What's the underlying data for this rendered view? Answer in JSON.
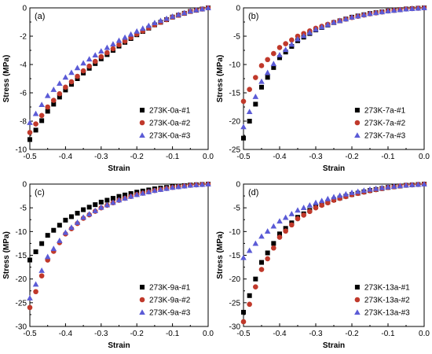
{
  "chart_data": [
    {
      "type": "scatter",
      "panel_label": "(a)",
      "xlabel": "Strain",
      "ylabel": "Stress (MPa)",
      "xlim": [
        -0.5,
        0.0
      ],
      "ylim": [
        -10,
        0
      ],
      "xticks": [
        -0.5,
        -0.4,
        -0.3,
        -0.2,
        -0.1,
        0.0
      ],
      "xtick_labels": [
        "-0.5",
        "-0.4",
        "-0.3",
        "-0.2",
        "-0.1",
        "0.0"
      ],
      "yticks": [
        -10,
        -8,
        -6,
        -4,
        -2,
        0
      ],
      "ytick_labels": [
        "-10",
        "-8",
        "-6",
        "-4",
        "-2",
        "0"
      ],
      "legend_position": "lower-right",
      "series": [
        {
          "name": "273K-0a-#1",
          "marker": "square",
          "color": "#000000",
          "x": [
            -0.5,
            -0.45,
            -0.4,
            -0.35,
            -0.3,
            -0.25,
            -0.2,
            -0.15,
            -0.1,
            -0.05,
            0.0
          ],
          "y": [
            -9.3,
            -7.3,
            -5.8,
            -4.6,
            -3.6,
            -2.7,
            -1.9,
            -1.2,
            -0.65,
            -0.25,
            0.0
          ]
        },
        {
          "name": "273K-0a-#2",
          "marker": "circle",
          "color": "#c0392b",
          "x": [
            -0.5,
            -0.45,
            -0.4,
            -0.35,
            -0.3,
            -0.25,
            -0.2,
            -0.15,
            -0.1,
            -0.05,
            0.0
          ],
          "y": [
            -8.8,
            -7.0,
            -5.6,
            -4.45,
            -3.45,
            -2.6,
            -1.85,
            -1.2,
            -0.65,
            -0.25,
            0.0
          ]
        },
        {
          "name": "273K-0a-#3",
          "marker": "triangle",
          "color": "#5b5bd6",
          "x": [
            -0.5,
            -0.45,
            -0.4,
            -0.35,
            -0.3,
            -0.25,
            -0.2,
            -0.15,
            -0.1,
            -0.05,
            0.0
          ],
          "y": [
            -8.1,
            -6.2,
            -4.9,
            -3.9,
            -3.05,
            -2.3,
            -1.65,
            -1.05,
            -0.6,
            -0.22,
            0.0
          ]
        }
      ]
    },
    {
      "type": "scatter",
      "panel_label": "(b)",
      "xlabel": "Strain",
      "ylabel": "Stress (MPa)",
      "xlim": [
        -0.5,
        0.0
      ],
      "ylim": [
        -25,
        0
      ],
      "xticks": [
        -0.5,
        -0.4,
        -0.3,
        -0.2,
        -0.1,
        0.0
      ],
      "xtick_labels": [
        "-0.5",
        "-0.4",
        "-0.3",
        "-0.2",
        "-0.1",
        "0.0"
      ],
      "yticks": [
        -25,
        -20,
        -15,
        -10,
        -5,
        0
      ],
      "ytick_labels": [
        "-25",
        "-20",
        "-15",
        "-10",
        "-5",
        "0"
      ],
      "legend_position": "lower-right",
      "series": [
        {
          "name": "273K-7a-#1",
          "marker": "square",
          "color": "#000000",
          "x": [
            -0.5,
            -0.45,
            -0.4,
            -0.35,
            -0.3,
            -0.25,
            -0.2,
            -0.15,
            -0.1,
            -0.05,
            0.0
          ],
          "y": [
            -23.0,
            -14.0,
            -8.8,
            -5.8,
            -3.9,
            -2.6,
            -1.65,
            -1.0,
            -0.55,
            -0.2,
            0.0
          ]
        },
        {
          "name": "273K-7a-#2",
          "marker": "circle",
          "color": "#c0392b",
          "x": [
            -0.5,
            -0.45,
            -0.4,
            -0.35,
            -0.3,
            -0.25,
            -0.2,
            -0.15,
            -0.1,
            -0.05,
            0.0
          ],
          "y": [
            -16.5,
            -10.2,
            -7.0,
            -5.0,
            -3.6,
            -2.55,
            -1.7,
            -1.05,
            -0.55,
            -0.2,
            0.0
          ]
        },
        {
          "name": "273K-7a-#3",
          "marker": "triangle",
          "color": "#5b5bd6",
          "x": [
            -0.5,
            -0.45,
            -0.4,
            -0.35,
            -0.3,
            -0.25,
            -0.2,
            -0.15,
            -0.1,
            -0.05,
            0.0
          ],
          "y": [
            -21.0,
            -13.0,
            -8.3,
            -5.5,
            -3.8,
            -2.55,
            -1.65,
            -1.0,
            -0.55,
            -0.2,
            0.0
          ]
        }
      ]
    },
    {
      "type": "scatter",
      "panel_label": "(c)",
      "xlabel": "Strain",
      "ylabel": "Stress (MPa)",
      "xlim": [
        -0.5,
        0.0
      ],
      "ylim": [
        -30,
        0
      ],
      "xticks": [
        -0.5,
        -0.4,
        -0.3,
        -0.2,
        -0.1,
        0.0
      ],
      "xtick_labels": [
        "-0.5",
        "-0.4",
        "-0.3",
        "-0.2",
        "-0.1",
        "0.0"
      ],
      "yticks": [
        -30,
        -25,
        -20,
        -15,
        -10,
        -5,
        0
      ],
      "ytick_labels": [
        "-30",
        "-25",
        "-20",
        "-15",
        "-10",
        "-5",
        "0"
      ],
      "legend_position": "lower-right",
      "series": [
        {
          "name": "273K-9a-#1",
          "marker": "square",
          "color": "#000000",
          "x": [
            -0.5,
            -0.45,
            -0.4,
            -0.35,
            -0.3,
            -0.25,
            -0.2,
            -0.15,
            -0.1,
            -0.05,
            0.0
          ],
          "y": [
            -16.0,
            -10.8,
            -7.6,
            -5.4,
            -3.8,
            -2.6,
            -1.7,
            -1.0,
            -0.55,
            -0.2,
            0.0
          ]
        },
        {
          "name": "273K-9a-#2",
          "marker": "circle",
          "color": "#c0392b",
          "x": [
            -0.5,
            -0.45,
            -0.4,
            -0.35,
            -0.3,
            -0.25,
            -0.2,
            -0.15,
            -0.1,
            -0.05,
            0.0
          ],
          "y": [
            -26.0,
            -16.0,
            -10.5,
            -7.2,
            -5.0,
            -3.4,
            -2.2,
            -1.35,
            -0.7,
            -0.25,
            0.0
          ]
        },
        {
          "name": "273K-9a-#3",
          "marker": "triangle",
          "color": "#5b5bd6",
          "x": [
            -0.5,
            -0.45,
            -0.4,
            -0.35,
            -0.3,
            -0.25,
            -0.2,
            -0.15,
            -0.1,
            -0.05,
            0.0
          ],
          "y": [
            -24.0,
            -15.3,
            -10.2,
            -7.0,
            -4.9,
            -3.35,
            -2.2,
            -1.35,
            -0.7,
            -0.25,
            0.0
          ]
        }
      ]
    },
    {
      "type": "scatter",
      "panel_label": "(d)",
      "xlabel": "Strain",
      "ylabel": "Stress (MPa)",
      "xlim": [
        -0.5,
        0.0
      ],
      "ylim": [
        -30,
        0
      ],
      "xticks": [
        -0.5,
        -0.4,
        -0.3,
        -0.2,
        -0.1,
        0.0
      ],
      "xtick_labels": [
        "-0.5",
        "-0.4",
        "-0.3",
        "-0.2",
        "-0.1",
        "0.0"
      ],
      "yticks": [
        -30,
        -25,
        -20,
        -15,
        -10,
        -5,
        0
      ],
      "ytick_labels": [
        "-30",
        "-25",
        "-20",
        "-15",
        "-10",
        "-5",
        "0"
      ],
      "legend_position": "lower-right",
      "series": [
        {
          "name": "273K-13a-#1",
          "marker": "square",
          "color": "#000000",
          "x": [
            -0.5,
            -0.45,
            -0.4,
            -0.35,
            -0.3,
            -0.25,
            -0.2,
            -0.15,
            -0.1,
            -0.05,
            0.0
          ],
          "y": [
            -27.0,
            -16.5,
            -10.5,
            -7.0,
            -4.8,
            -3.3,
            -2.2,
            -1.35,
            -0.7,
            -0.25,
            0.0
          ]
        },
        {
          "name": "273K-13a-#2",
          "marker": "circle",
          "color": "#c0392b",
          "x": [
            -0.5,
            -0.45,
            -0.4,
            -0.35,
            -0.3,
            -0.25,
            -0.2,
            -0.15,
            -0.1,
            -0.05,
            0.0
          ],
          "y": [
            -29.0,
            -18.0,
            -11.2,
            -7.3,
            -5.0,
            -3.4,
            -2.25,
            -1.4,
            -0.72,
            -0.25,
            0.0
          ]
        },
        {
          "name": "273K-13a-#3",
          "marker": "triangle",
          "color": "#5b5bd6",
          "x": [
            -0.5,
            -0.45,
            -0.4,
            -0.35,
            -0.3,
            -0.25,
            -0.2,
            -0.15,
            -0.1,
            -0.05,
            0.0
          ],
          "y": [
            -15.5,
            -11.0,
            -7.8,
            -5.5,
            -3.9,
            -2.7,
            -1.8,
            -1.1,
            -0.6,
            -0.22,
            0.0
          ]
        }
      ]
    }
  ]
}
